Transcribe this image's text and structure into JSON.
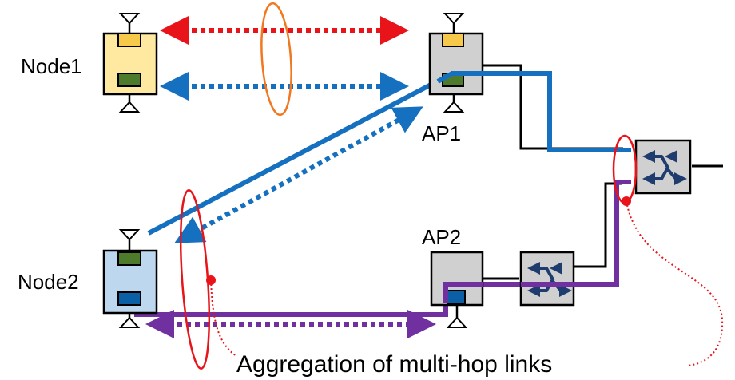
{
  "labels": {
    "node1": "Node1",
    "node2": "Node2",
    "ap1": "AP1",
    "ap2": "AP2",
    "caption": "Aggregation of multi-hop links"
  },
  "colors": {
    "node1_fill": "#FFE8A0",
    "node1_port_top": "#F7C94B",
    "node2_fill": "#BDD7EE",
    "ap_fill": "#D0D0D0",
    "switch_fill": "#D0D0D0",
    "port_green": "#4E7A2C",
    "port_blue": "#0B5FA5",
    "link_red": "#E8141A",
    "link_blue": "#1570C0",
    "link_purple": "#7030A0",
    "ellipse_orange": "#F07820",
    "switch_arrow": "#1F3C6E"
  }
}
